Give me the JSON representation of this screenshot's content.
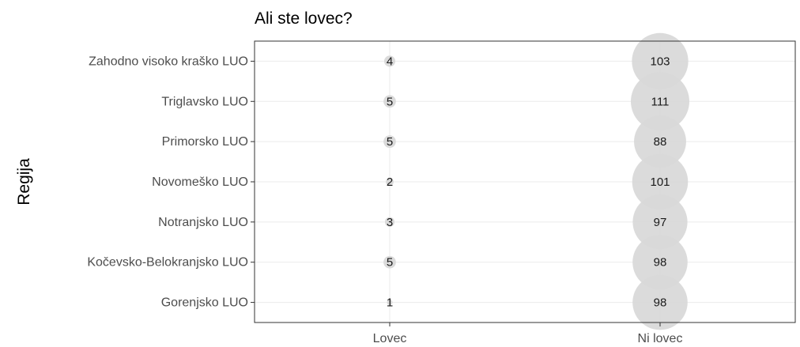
{
  "chart_data": {
    "type": "scatter",
    "title": "Ali ste lovec?",
    "xlabel": "",
    "ylabel": "Regija",
    "x_categories": [
      "Lovec",
      "Ni lovec"
    ],
    "y_categories": [
      "Zahodno visoko kraško LUO",
      "Triglavsko LUO",
      "Primorsko LUO",
      "Novomeško LUO",
      "Notranjsko LUO",
      "Kočevsko-Belokranjsko LUO",
      "Gorenjsko LUO"
    ],
    "series": [
      {
        "x": "Lovec",
        "values": [
          4,
          5,
          5,
          2,
          3,
          5,
          1
        ]
      },
      {
        "x": "Ni lovec",
        "values": [
          103,
          111,
          88,
          101,
          97,
          98,
          98
        ]
      }
    ],
    "size_encodes": "count",
    "point_color": "#d9d9d9",
    "grid": true,
    "legend": "none"
  }
}
